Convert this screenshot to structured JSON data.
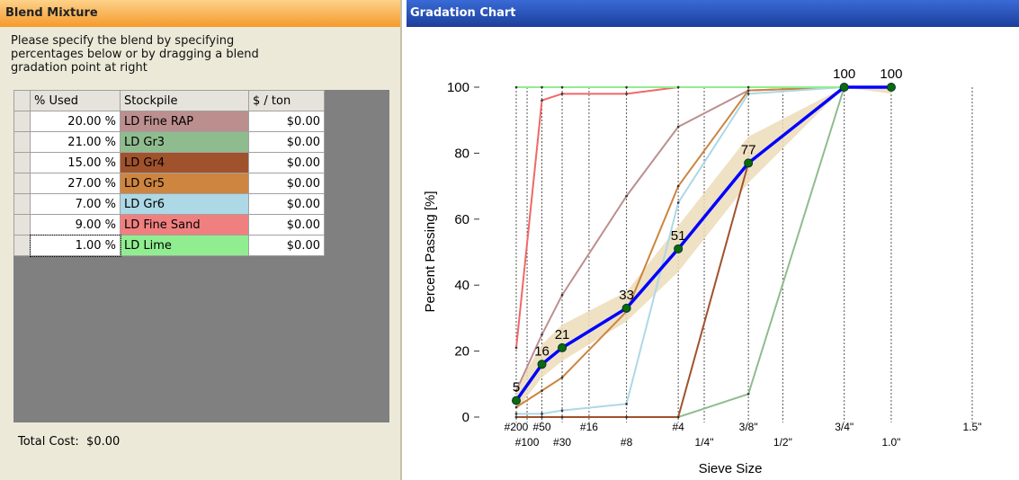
{
  "blend_panel": {
    "title": "Blend Mixture",
    "instructions": [
      "Please specify the blend by specifying",
      "percentages below or by dragging a blend",
      "gradation point at right"
    ],
    "table": {
      "columns": [
        "% Used",
        "Stockpile",
        "$ / ton"
      ],
      "rows": [
        {
          "used": "20.00 %",
          "stockpile": "LD Fine RAP",
          "cost": "$0.00",
          "color": "#bc8f8f"
        },
        {
          "used": "21.00 %",
          "stockpile": "LD Gr3",
          "cost": "$0.00",
          "color": "#8fbc8f"
        },
        {
          "used": "15.00 %",
          "stockpile": "LD Gr4",
          "cost": "$0.00",
          "color": "#a0522d"
        },
        {
          "used": "27.00 %",
          "stockpile": "LD Gr5",
          "cost": "$0.00",
          "color": "#cd853f"
        },
        {
          "used": "7.00 %",
          "stockpile": "LD Gr6",
          "cost": "$0.00",
          "color": "#add8e6"
        },
        {
          "used": "9.00 %",
          "stockpile": "LD Fine Sand",
          "cost": "$0.00",
          "color": "#f08080"
        },
        {
          "used": "1.00 %",
          "stockpile": "LD Lime",
          "cost": "$0.00",
          "color": "#90ee90"
        }
      ]
    },
    "total_cost": {
      "label": "Total Cost:",
      "value": "$0.00"
    }
  },
  "chart_panel": {
    "title": "Gradation Chart"
  },
  "chart_data": {
    "type": "line",
    "x_label": "Sieve Size",
    "y_label": "Percent Passing [%]",
    "xscale": {
      "type": "power",
      "exponent": 0.45
    },
    "xlim": [
      0.075,
      37.5
    ],
    "ylim": [
      0,
      100
    ],
    "xticks": [
      {
        "value": 0.075,
        "label": "#200"
      },
      {
        "value": 0.15,
        "label": "#100"
      },
      {
        "value": 0.3,
        "label": "#50"
      },
      {
        "value": 0.6,
        "label": "#30"
      },
      {
        "value": 1.18,
        "label": "#16"
      },
      {
        "value": 2.36,
        "label": "#8"
      },
      {
        "value": 4.75,
        "label": "#4"
      },
      {
        "value": 6.3,
        "label": "1/4\""
      },
      {
        "value": 9.5,
        "label": "3/8\""
      },
      {
        "value": 12.5,
        "label": "1/2\""
      },
      {
        "value": 19,
        "label": "3/4\""
      },
      {
        "value": 25,
        "label": "1.0\""
      },
      {
        "value": 37.5,
        "label": "1.5\""
      }
    ],
    "yticks": [
      0,
      20,
      40,
      60,
      80,
      100
    ],
    "x": [
      0.075,
      0.3,
      0.6,
      2.36,
      4.75,
      9.5,
      19,
      25
    ],
    "band": {
      "color": "#ecdcb8",
      "lower": [
        2,
        12,
        17,
        29,
        44,
        71,
        100,
        98
      ],
      "upper": [
        9,
        22,
        28,
        38,
        58,
        85,
        100,
        100
      ]
    },
    "series": [
      {
        "color": "#bc8f8f",
        "values": [
          8,
          25,
          37,
          67,
          88,
          99,
          100,
          100
        ]
      },
      {
        "color": "#8fbc8f",
        "values": [
          0,
          0,
          0,
          0,
          0,
          7,
          100,
          100
        ]
      },
      {
        "color": "#a0522d",
        "values": [
          0,
          0,
          0,
          0,
          0,
          77,
          100,
          100
        ]
      },
      {
        "color": "#cd853f",
        "values": [
          3,
          8,
          12,
          32,
          70,
          99,
          100,
          100
        ]
      },
      {
        "color": "#add8e6",
        "values": [
          1,
          1,
          2,
          4,
          65,
          98,
          100,
          100
        ]
      },
      {
        "color": "#f06868",
        "values": [
          21,
          96,
          98,
          98,
          100,
          100,
          100,
          100
        ]
      },
      {
        "color": "#90ee90",
        "values": [
          100,
          100,
          100,
          100,
          100,
          100,
          100,
          100
        ]
      }
    ],
    "blend": {
      "color": "#0000ff",
      "marker_color": "#0a6b0a",
      "values": [
        5,
        16,
        21,
        33,
        51,
        77,
        100,
        100
      ]
    }
  }
}
